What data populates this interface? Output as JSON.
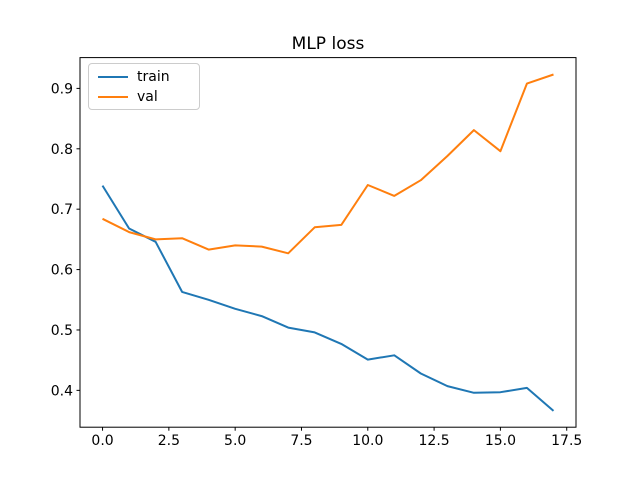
{
  "figure": {
    "background": "#ffffff",
    "text_color": "#000000"
  },
  "chart_data": {
    "type": "line",
    "title": "MLP loss",
    "xlabel": "",
    "ylabel": "",
    "grid": false,
    "x": [
      0,
      1,
      2,
      3,
      4,
      5,
      6,
      7,
      8,
      9,
      10,
      11,
      12,
      13,
      14,
      15,
      16,
      17
    ],
    "series": [
      {
        "name": "train",
        "color": "#1f77b4",
        "values": [
          0.739,
          0.668,
          0.646,
          0.563,
          0.55,
          0.535,
          0.523,
          0.504,
          0.496,
          0.477,
          0.451,
          0.458,
          0.428,
          0.407,
          0.396,
          0.397,
          0.404,
          0.366
        ]
      },
      {
        "name": "val",
        "color": "#ff7f0e",
        "values": [
          0.684,
          0.662,
          0.65,
          0.652,
          0.633,
          0.64,
          0.638,
          0.627,
          0.67,
          0.674,
          0.74,
          0.722,
          0.748,
          0.788,
          0.831,
          0.796,
          0.908,
          0.923
        ]
      }
    ],
    "xlim": [
      -0.85,
      17.85
    ],
    "ylim": [
      0.339,
      0.951
    ],
    "xticks": [
      "0.0",
      "2.5",
      "5.0",
      "7.5",
      "10.0",
      "12.5",
      "15.0",
      "17.5"
    ],
    "xtick_values": [
      0,
      2.5,
      5,
      7.5,
      10,
      12.5,
      15,
      17.5
    ],
    "yticks": [
      "0.4",
      "0.5",
      "0.6",
      "0.7",
      "0.8",
      "0.9"
    ],
    "ytick_values": [
      0.4,
      0.5,
      0.6,
      0.7,
      0.8,
      0.9
    ],
    "legend": {
      "position": "upper left",
      "entries": [
        "train",
        "val"
      ]
    }
  }
}
